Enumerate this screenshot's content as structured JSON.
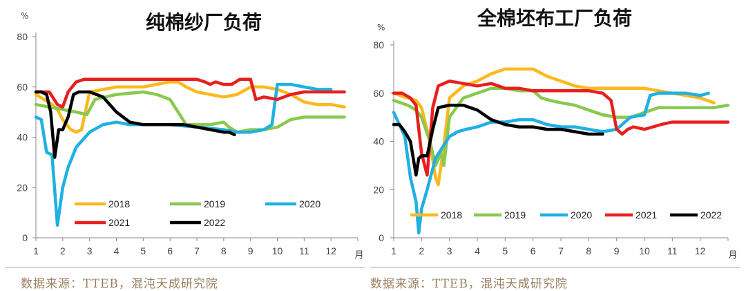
{
  "chart_data": [
    {
      "type": "line",
      "title": "纯棉纱厂负荷",
      "ylabel": "%",
      "xunit": "月",
      "ylim": [
        0,
        80
      ],
      "yticks": [
        0,
        20,
        40,
        60,
        80
      ],
      "xlim": [
        1,
        13
      ],
      "xticks": [
        "1",
        "2",
        "3",
        "4",
        "5",
        "6",
        "7",
        "8",
        "9",
        "10",
        "11",
        "12"
      ],
      "legend": "inside-bottom",
      "grid": false,
      "series": [
        {
          "name": "2018",
          "color": "#fbb91f",
          "x": [
            1,
            1.3,
            1.6,
            1.8,
            2.0,
            2.3,
            2.5,
            2.7,
            3.0,
            3.5,
            4,
            5,
            5.5,
            6,
            6.3,
            6.6,
            7,
            7.5,
            8,
            8.5,
            9,
            9.5,
            10,
            10.5,
            11,
            11.5,
            12,
            12.5
          ],
          "y": [
            57,
            55,
            53,
            51,
            47,
            43,
            42,
            43,
            58,
            59,
            60,
            60,
            61,
            62,
            62,
            60,
            58,
            57,
            56,
            57,
            60,
            60,
            59,
            57,
            54,
            53,
            53,
            52
          ]
        },
        {
          "name": "2019",
          "color": "#89c94e",
          "x": [
            1,
            1.5,
            2.0,
            2.5,
            2.9,
            3.2,
            4,
            5,
            5.5,
            6,
            6.3,
            6.6,
            7,
            7.5,
            8,
            8.2,
            8.5,
            9,
            9.5,
            10,
            10.5,
            11,
            11.5,
            12,
            12.5
          ],
          "y": [
            53,
            52,
            51,
            50,
            49,
            55,
            57,
            58,
            57,
            55,
            50,
            45,
            45,
            45,
            46,
            44,
            42,
            43,
            43,
            44,
            47,
            48,
            48,
            48,
            48
          ]
        },
        {
          "name": "2020",
          "color": "#1fb0e4",
          "x": [
            1,
            1.2,
            1.4,
            1.6,
            1.8,
            2.0,
            2.2,
            2.5,
            3.0,
            3.5,
            4,
            4.5,
            5,
            6,
            7,
            8,
            8.5,
            9,
            9.5,
            9.8,
            10,
            10.5,
            11,
            11.5,
            12
          ],
          "y": [
            48,
            47,
            34,
            33,
            5,
            20,
            28,
            36,
            42,
            45,
            46,
            45,
            45,
            45,
            44,
            43,
            42,
            42,
            43,
            45,
            61,
            61,
            60,
            59,
            59
          ]
        },
        {
          "name": "2021",
          "color": "#e81f1f",
          "x": [
            1,
            1.5,
            1.8,
            2.0,
            2.2,
            2.5,
            2.8,
            3.0,
            4,
            5,
            6,
            7,
            7.3,
            7.5,
            7.7,
            8,
            8.3,
            8.6,
            9,
            9.2,
            9.5,
            10,
            10.5,
            11,
            12,
            12.5
          ],
          "y": [
            58,
            58,
            53,
            52,
            58,
            62,
            63,
            63,
            63,
            63,
            63,
            63,
            62,
            61,
            62,
            61,
            61,
            63,
            63,
            55,
            56,
            55,
            57,
            58,
            58,
            58
          ]
        },
        {
          "name": "2022",
          "color": "#000000",
          "x": [
            1,
            1.2,
            1.4,
            1.55,
            1.7,
            1.85,
            2.0,
            2.2,
            2.4,
            2.6,
            3.0,
            3.5,
            4,
            4.5,
            5,
            5.5,
            6,
            6.5,
            7,
            7.5,
            8,
            8.2,
            8.4
          ],
          "y": [
            58,
            58,
            57,
            50,
            32,
            43,
            43,
            48,
            57,
            58,
            58,
            56,
            50,
            46,
            45,
            45,
            45,
            45,
            44,
            43,
            42,
            42,
            41
          ]
        }
      ]
    },
    {
      "type": "line",
      "title": "全棉坯布工厂负荷",
      "ylabel": "%",
      "xunit": "月",
      "ylim": [
        0,
        80
      ],
      "yticks": [
        0,
        20,
        40,
        60,
        80
      ],
      "xlim": [
        1,
        13
      ],
      "xticks": [
        "1",
        "2",
        "3",
        "4",
        "5",
        "6",
        "7",
        "8",
        "9",
        "10",
        "11",
        "12"
      ],
      "legend": "bottom",
      "grid": false,
      "series": [
        {
          "name": "2018",
          "color": "#fbb91f",
          "x": [
            1,
            1.5,
            1.8,
            2.0,
            2.3,
            2.5,
            2.6,
            2.8,
            3.0,
            3.5,
            4,
            4.5,
            5,
            5.5,
            6,
            6.5,
            7,
            7.5,
            8,
            8.5,
            9,
            9.5,
            10,
            10.5,
            11,
            11.5,
            12,
            12.5
          ],
          "y": [
            60,
            58,
            57,
            54,
            40,
            25,
            22,
            38,
            58,
            63,
            65,
            68,
            70,
            70,
            70,
            67,
            65,
            63,
            62,
            62,
            62,
            62,
            62,
            61,
            60,
            59,
            58,
            56
          ]
        },
        {
          "name": "2019",
          "color": "#89c94e",
          "x": [
            1,
            1.5,
            1.8,
            2.0,
            2.3,
            2.5,
            2.7,
            2.8,
            3.0,
            3.5,
            4,
            4.5,
            5,
            5.5,
            6,
            6.3,
            6.6,
            7,
            7.5,
            8,
            8.5,
            9,
            9.5,
            10,
            10.5,
            11,
            11.5,
            12,
            12.5,
            13
          ],
          "y": [
            57,
            55,
            53,
            50,
            40,
            30,
            35,
            30,
            50,
            58,
            60,
            62,
            62,
            61,
            61,
            58,
            57,
            56,
            55,
            53,
            51,
            50,
            50,
            52,
            54,
            54,
            54,
            54,
            54,
            55
          ]
        },
        {
          "name": "2020",
          "color": "#1fb0e4",
          "x": [
            1,
            1.2,
            1.4,
            1.6,
            1.8,
            1.9,
            2.0,
            2.2,
            2.5,
            3.0,
            3.3,
            3.6,
            4,
            4.5,
            5,
            5.5,
            6,
            6.5,
            7,
            7.5,
            8,
            8.5,
            9,
            9.5,
            10,
            10.2,
            10.5,
            11,
            11.5,
            12,
            12.3
          ],
          "y": [
            52,
            47,
            42,
            25,
            15,
            2,
            12,
            20,
            33,
            42,
            44,
            45,
            46,
            48,
            48,
            49,
            49,
            47,
            46,
            46,
            45,
            44,
            45,
            50,
            51,
            59,
            60,
            60,
            60,
            59,
            60
          ]
        },
        {
          "name": "2021",
          "color": "#e81f1f",
          "x": [
            1,
            1.3,
            1.6,
            1.8,
            2.0,
            2.2,
            2.4,
            2.6,
            3.0,
            3.5,
            4,
            4.5,
            5,
            5.5,
            6,
            7,
            8,
            8.5,
            8.8,
            9.0,
            9.2,
            9.4,
            9.6,
            10,
            10.3,
            10.6,
            11,
            11.5,
            12,
            12.5,
            13
          ],
          "y": [
            60,
            60,
            58,
            55,
            35,
            26,
            54,
            63,
            65,
            64,
            63,
            64,
            62,
            62,
            61,
            61,
            61,
            60,
            57,
            45,
            43,
            45,
            46,
            45,
            46,
            47,
            48,
            48,
            48,
            48,
            48
          ]
        },
        {
          "name": "2022",
          "color": "#000000",
          "x": [
            1,
            1.2,
            1.4,
            1.6,
            1.8,
            1.9,
            2.0,
            2.2,
            2.4,
            2.6,
            3.0,
            3.5,
            4,
            4.5,
            5,
            5.5,
            6,
            6.5,
            7,
            7.5,
            8,
            8.3,
            8.5
          ],
          "y": [
            47,
            47,
            44,
            40,
            26,
            33,
            34,
            34,
            45,
            54,
            55,
            55,
            53,
            49,
            47,
            46,
            46,
            45,
            45,
            44,
            43,
            43,
            43
          ]
        }
      ]
    }
  ],
  "source": [
    {
      "text": "数据来源：TTEB，混沌天成研究院"
    },
    {
      "text": "数据来源：TTEB，混沌天成研究院"
    }
  ]
}
